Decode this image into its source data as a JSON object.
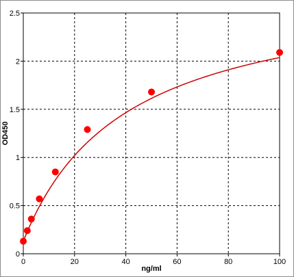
{
  "chart_data": {
    "type": "scatter",
    "title": "",
    "xlabel": "ng/ml",
    "ylabel": "OD450",
    "xlim": [
      0,
      100
    ],
    "ylim": [
      0,
      2.5
    ],
    "x_ticks": [
      0,
      20,
      40,
      60,
      80,
      100
    ],
    "y_ticks": [
      0,
      0.5,
      1,
      1.5,
      2,
      2.5
    ],
    "x_tick_labels": [
      "0",
      "20",
      "40",
      "60",
      "80",
      "100"
    ],
    "y_tick_labels": [
      "0",
      "0.5",
      "1",
      "1.5",
      "2",
      "2.5"
    ],
    "grid": true,
    "legend": "none",
    "series": [
      {
        "points": [
          {
            "x": 0,
            "y": 0.13
          },
          {
            "x": 1.56,
            "y": 0.24
          },
          {
            "x": 3.13,
            "y": 0.36
          },
          {
            "x": 6.25,
            "y": 0.57
          },
          {
            "x": 12.5,
            "y": 0.85
          },
          {
            "x": 25,
            "y": 1.29
          },
          {
            "x": 50,
            "y": 1.68
          },
          {
            "x": 100,
            "y": 2.09
          }
        ],
        "fit": "4PL",
        "fit_params": {
          "a": 0.13,
          "d": 2.8,
          "c": 40,
          "b": 1.0
        },
        "color": "#ff0000",
        "line_color": "#cc0000"
      }
    ],
    "colors": {
      "background": "#ffffff",
      "grid": "#000000",
      "axis": "#000000",
      "frame": "#8c8c8c"
    }
  }
}
